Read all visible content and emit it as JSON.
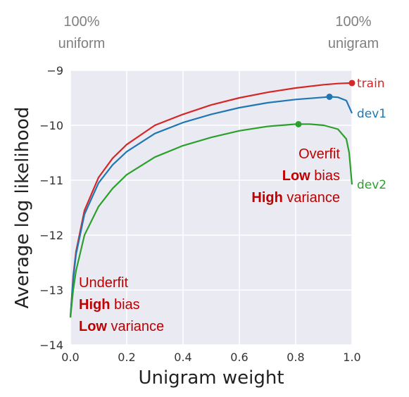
{
  "corner_labels": {
    "left": [
      "100%",
      "uniform"
    ],
    "right": [
      "100%",
      "unigram"
    ]
  },
  "annotations": {
    "overfit": {
      "line1": "Overfit",
      "line2_bold": "Low",
      "line2_rest": " bias",
      "line3_bold": "High",
      "line3_rest": " variance"
    },
    "underfit": {
      "line1": "Underfit",
      "line2_bold": "High",
      "line2_rest": " bias",
      "line3_bold": "Low",
      "line3_rest": " variance"
    }
  },
  "colors": {
    "plot_background": "#eaeaf2",
    "grid": "#ffffff",
    "train": "#d62728",
    "dev1": "#1f77b4",
    "dev2": "#2ca02c",
    "annotation": "#c00000"
  },
  "chart_data": {
    "type": "line",
    "xlabel": "Unigram weight",
    "ylabel": "Average log likelihood",
    "xlim": [
      0.0,
      1.0
    ],
    "ylim": [
      -14,
      -9
    ],
    "x_ticks": [
      0.0,
      0.2,
      0.4,
      0.6,
      0.8,
      1.0
    ],
    "x_tick_labels": [
      "0.0",
      "0.2",
      "0.4",
      "0.6",
      "0.8",
      "1.0"
    ],
    "y_ticks": [
      -9,
      -10,
      -11,
      -12,
      -13,
      -14
    ],
    "y_tick_labels": [
      "−9",
      "−10",
      "−11",
      "−12",
      "−13",
      "−14"
    ],
    "grid": true,
    "legend": "inline labels at right end of each line",
    "series": [
      {
        "name": "train",
        "x": [
          0.0,
          0.01,
          0.02,
          0.05,
          0.1,
          0.15,
          0.2,
          0.3,
          0.4,
          0.5,
          0.6,
          0.7,
          0.8,
          0.9,
          0.95,
          1.0
        ],
        "y": [
          -13.5,
          -12.75,
          -12.3,
          -11.55,
          -10.95,
          -10.6,
          -10.35,
          -10.0,
          -9.8,
          -9.63,
          -9.5,
          -9.4,
          -9.32,
          -9.26,
          -9.24,
          -9.23
        ],
        "marker": {
          "x": 1.0,
          "y": -9.23
        }
      },
      {
        "name": "dev1",
        "x": [
          0.0,
          0.01,
          0.02,
          0.05,
          0.1,
          0.15,
          0.2,
          0.3,
          0.4,
          0.5,
          0.6,
          0.7,
          0.8,
          0.9,
          0.92,
          0.95,
          0.98,
          1.0
        ],
        "y": [
          -13.5,
          -12.8,
          -12.35,
          -11.62,
          -11.05,
          -10.72,
          -10.48,
          -10.15,
          -9.95,
          -9.8,
          -9.68,
          -9.59,
          -9.53,
          -9.49,
          -9.48,
          -9.49,
          -9.55,
          -9.78
        ],
        "marker": {
          "x": 0.92,
          "y": -9.48
        }
      },
      {
        "name": "dev2",
        "x": [
          0.0,
          0.01,
          0.02,
          0.05,
          0.1,
          0.15,
          0.2,
          0.3,
          0.4,
          0.5,
          0.6,
          0.7,
          0.8,
          0.85,
          0.9,
          0.95,
          0.98,
          0.99,
          1.0
        ],
        "y": [
          -13.5,
          -13.0,
          -12.65,
          -12.0,
          -11.48,
          -11.15,
          -10.9,
          -10.58,
          -10.37,
          -10.22,
          -10.1,
          -10.02,
          -9.98,
          -9.98,
          -10.0,
          -10.07,
          -10.25,
          -10.5,
          -11.08
        ],
        "marker": {
          "x": 0.81,
          "y": -9.98
        }
      }
    ]
  }
}
